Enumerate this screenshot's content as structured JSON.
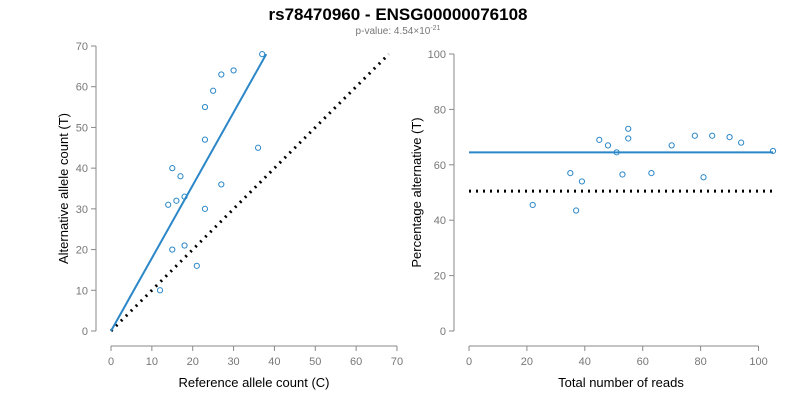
{
  "title": "rs78470960 - ENSG00000076108",
  "subtitle": {
    "prefix": "p-value: 4.54×10",
    "exponent": "-21"
  },
  "chart_data": [
    {
      "type": "scatter",
      "xlabel": "Reference allele count (C)",
      "ylabel": "Alternative allele count (T)",
      "xlim": [
        0,
        70
      ],
      "ylim": [
        0,
        70
      ],
      "xticks": [
        0,
        10,
        20,
        30,
        40,
        50,
        60,
        70
      ],
      "yticks": [
        0,
        10,
        20,
        30,
        40,
        50,
        60,
        70
      ],
      "grid": false,
      "colors": {
        "points": "#2b87c8",
        "fit": "#2b87c8",
        "reference": "#000000"
      },
      "points": [
        {
          "x": 12,
          "y": 10
        },
        {
          "x": 15,
          "y": 20
        },
        {
          "x": 18,
          "y": 21
        },
        {
          "x": 21,
          "y": 16
        },
        {
          "x": 14,
          "y": 31
        },
        {
          "x": 16,
          "y": 32
        },
        {
          "x": 18,
          "y": 33
        },
        {
          "x": 17,
          "y": 38
        },
        {
          "x": 15,
          "y": 40
        },
        {
          "x": 23,
          "y": 30
        },
        {
          "x": 27,
          "y": 36
        },
        {
          "x": 23,
          "y": 47
        },
        {
          "x": 36,
          "y": 45
        },
        {
          "x": 23,
          "y": 55
        },
        {
          "x": 25,
          "y": 59
        },
        {
          "x": 27,
          "y": 63
        },
        {
          "x": 30,
          "y": 64
        },
        {
          "x": 37,
          "y": 68
        }
      ],
      "fit_line": {
        "x": [
          0,
          38
        ],
        "y": [
          0,
          68
        ]
      },
      "reference_line": {
        "x": [
          0,
          68
        ],
        "y": [
          0,
          68
        ]
      }
    },
    {
      "type": "scatter",
      "xlabel": "Total number of reads",
      "ylabel": "Percentage alternative (T)",
      "xlim": [
        0,
        105
      ],
      "ylim": [
        0,
        100
      ],
      "xticks": [
        0,
        20,
        40,
        60,
        80,
        100
      ],
      "yticks": [
        0,
        20,
        40,
        60,
        80,
        100
      ],
      "grid": false,
      "colors": {
        "points": "#2b87c8",
        "fit": "#2b87c8",
        "reference": "#000000"
      },
      "points": [
        {
          "x": 22,
          "y": 45.5
        },
        {
          "x": 35,
          "y": 57
        },
        {
          "x": 37,
          "y": 43.5
        },
        {
          "x": 39,
          "y": 54
        },
        {
          "x": 45,
          "y": 69
        },
        {
          "x": 48,
          "y": 67
        },
        {
          "x": 51,
          "y": 64.5
        },
        {
          "x": 53,
          "y": 56.5
        },
        {
          "x": 55,
          "y": 69.5
        },
        {
          "x": 55,
          "y": 73
        },
        {
          "x": 63,
          "y": 57
        },
        {
          "x": 70,
          "y": 67
        },
        {
          "x": 78,
          "y": 70.5
        },
        {
          "x": 81,
          "y": 55.5
        },
        {
          "x": 84,
          "y": 70.5
        },
        {
          "x": 90,
          "y": 70
        },
        {
          "x": 94,
          "y": 68
        },
        {
          "x": 105,
          "y": 65
        }
      ],
      "fit_line": {
        "x": [
          0,
          105
        ],
        "y": [
          64.5,
          64.5
        ]
      },
      "reference_line": {
        "x": [
          0,
          105
        ],
        "y": [
          50.5,
          50.5
        ]
      }
    }
  ]
}
